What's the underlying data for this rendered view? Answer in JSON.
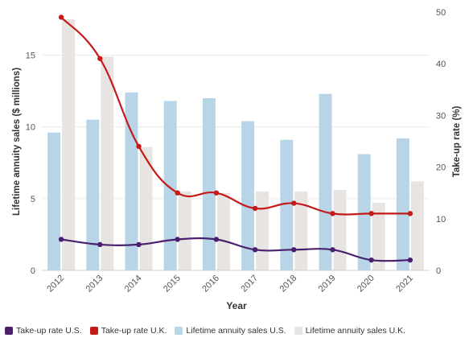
{
  "chart_data": {
    "type": "bar",
    "title": "",
    "xlabel": "Year",
    "ylabel": "Lifetime annuity sales ($ millions)",
    "y2label": "Take-up rate (%)",
    "categories": [
      "2012",
      "2013",
      "2014",
      "2015",
      "2016",
      "2017",
      "2018",
      "2019",
      "2020",
      "2021"
    ],
    "ylim": [
      0,
      18
    ],
    "y2lim": [
      0,
      50
    ],
    "yticks": [
      "0",
      "5",
      "10",
      "15"
    ],
    "y2ticks": [
      "0",
      "10",
      "20",
      "30",
      "40",
      "50"
    ],
    "grid": true,
    "legend_position": "bottom-left",
    "bar_series": [
      {
        "name": "Lifetime annuity sales U.S.",
        "color": "#b8d5e8",
        "values": [
          9.6,
          10.5,
          12.4,
          11.8,
          12.0,
          10.4,
          9.1,
          12.3,
          8.1,
          9.2
        ]
      },
      {
        "name": "Lifetime annuity sales U.K.",
        "color": "#e8e4e1",
        "values": [
          17.5,
          14.9,
          8.6,
          5.5,
          5.4,
          5.5,
          5.5,
          5.6,
          4.7,
          6.2
        ]
      }
    ],
    "line_series": [
      {
        "name": "Take-up rate U.S.",
        "color": "#4a1f6e",
        "values": [
          6,
          5,
          5,
          6,
          6,
          4,
          4,
          4,
          2,
          2
        ]
      },
      {
        "name": "Take-up rate U.K.",
        "color": "#c41a1a",
        "values": [
          49,
          41,
          24,
          15,
          15,
          12,
          13,
          11,
          11,
          11
        ]
      }
    ]
  },
  "legend": [
    {
      "label": "Take-up rate U.S.",
      "color": "#4a1f6e"
    },
    {
      "label": "Take-up rate U.K.",
      "color": "#c41a1a"
    },
    {
      "label": "Lifetime annuity sales U.S.",
      "color": "#b8d5e8"
    },
    {
      "label": "Lifetime annuity sales U.K.",
      "color": "#e8e4e1"
    }
  ]
}
